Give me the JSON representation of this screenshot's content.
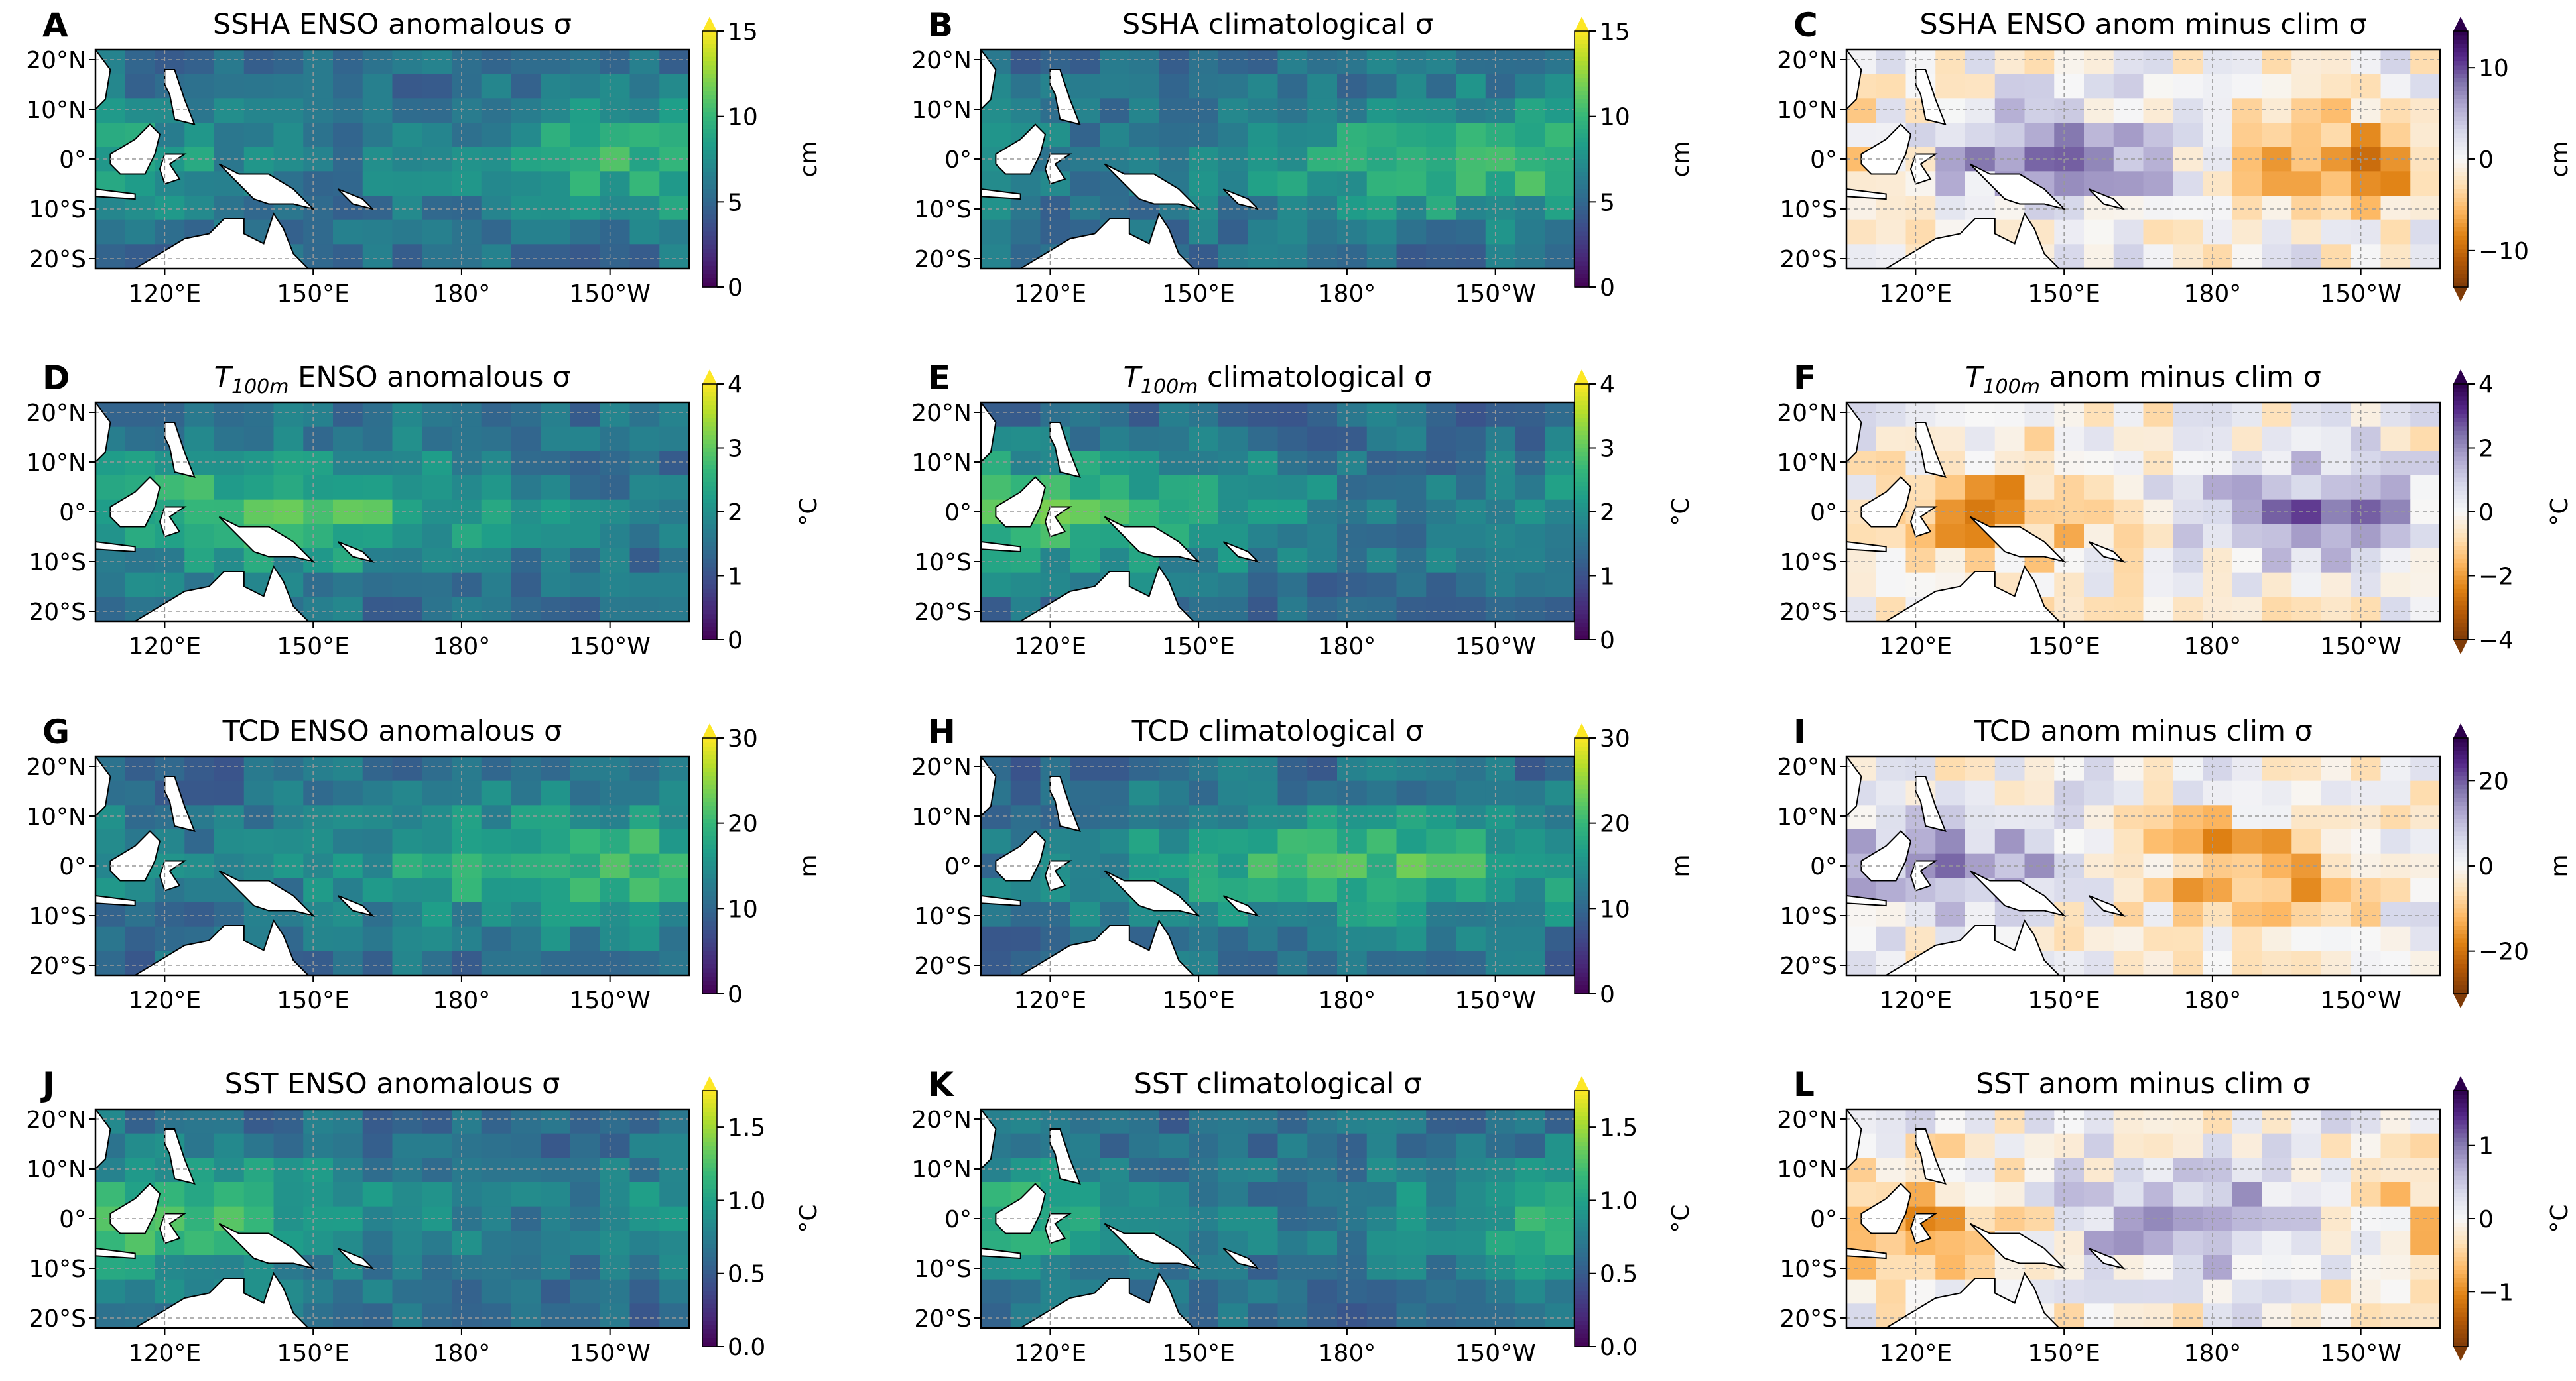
{
  "figure": {
    "x_ticks": [
      "120°E",
      "150°E",
      "180°",
      "150°W"
    ],
    "y_ticks": [
      "20°N",
      "10°N",
      "0°",
      "10°S",
      "20°S"
    ],
    "colormaps": {
      "viridis": [
        "#440154",
        "#482878",
        "#3e4a89",
        "#31688e",
        "#26828e",
        "#1f9e89",
        "#35b779",
        "#6ece58",
        "#b5de2b",
        "#fde725"
      ],
      "puor": [
        "#7f3b08",
        "#b35806",
        "#e08214",
        "#fdb863",
        "#fee0b6",
        "#f7f7f7",
        "#d8daeb",
        "#b2abd2",
        "#8073ac",
        "#542788",
        "#2d004b"
      ]
    },
    "land_color": "#ffffff",
    "grid": true
  },
  "chart_data": [
    {
      "id": "A",
      "type": "heatmap",
      "title": "SSHA ENSO anomalous σ",
      "cmap": "viridis",
      "range": [
        0,
        15
      ],
      "ticks": [
        "0",
        "5",
        "10",
        "15"
      ],
      "unit": "cm",
      "seed": 11,
      "max_tip": true
    },
    {
      "id": "B",
      "type": "heatmap",
      "title": "SSHA climatological σ",
      "cmap": "viridis",
      "range": [
        0,
        15
      ],
      "ticks": [
        "0",
        "5",
        "10",
        "15"
      ],
      "unit": "cm",
      "seed": 12,
      "max_tip": true
    },
    {
      "id": "C",
      "type": "heatmap",
      "title": "SSHA ENSO anom minus clim σ",
      "cmap": "puor",
      "range": [
        -14,
        14
      ],
      "ticks": [
        "−10",
        "0",
        "10"
      ],
      "tick_values": [
        -10,
        0,
        10
      ],
      "unit": "cm",
      "seed": 13,
      "diverging": true
    },
    {
      "id": "D",
      "type": "heatmap",
      "title_prefix": "T",
      "title_sub": "100m",
      "title_rest": " ENSO anomalous σ",
      "cmap": "viridis",
      "range": [
        0,
        4
      ],
      "ticks": [
        "0",
        "1",
        "2",
        "3",
        "4"
      ],
      "unit": "°C",
      "seed": 21,
      "max_tip": true
    },
    {
      "id": "E",
      "type": "heatmap",
      "title_prefix": "T",
      "title_sub": "100m",
      "title_rest": " climatological σ",
      "cmap": "viridis",
      "range": [
        0,
        4
      ],
      "ticks": [
        "0",
        "1",
        "2",
        "3",
        "4"
      ],
      "unit": "°C",
      "seed": 22,
      "max_tip": true
    },
    {
      "id": "F",
      "type": "heatmap",
      "title_prefix": "T",
      "title_sub": "100m",
      "title_rest": " anom minus clim σ",
      "cmap": "puor",
      "range": [
        -4,
        4
      ],
      "ticks": [
        "−4",
        "−2",
        "0",
        "2",
        "4"
      ],
      "tick_values": [
        -4,
        -2,
        0,
        2,
        4
      ],
      "unit": "°C",
      "seed": 23,
      "diverging": true
    },
    {
      "id": "G",
      "type": "heatmap",
      "title": "TCD ENSO anomalous σ",
      "cmap": "viridis",
      "range": [
        0,
        30
      ],
      "ticks": [
        "0",
        "10",
        "20",
        "30"
      ],
      "unit": "m",
      "seed": 31,
      "max_tip": true
    },
    {
      "id": "H",
      "type": "heatmap",
      "title": "TCD climatological σ",
      "cmap": "viridis",
      "range": [
        0,
        30
      ],
      "ticks": [
        "0",
        "10",
        "20",
        "30"
      ],
      "unit": "m",
      "seed": 32,
      "max_tip": true
    },
    {
      "id": "I",
      "type": "heatmap",
      "title": "TCD anom minus clim σ",
      "cmap": "puor",
      "range": [
        -30,
        30
      ],
      "ticks": [
        "−20",
        "0",
        "20"
      ],
      "tick_values": [
        -20,
        0,
        20
      ],
      "unit": "m",
      "seed": 33,
      "diverging": true
    },
    {
      "id": "J",
      "type": "heatmap",
      "title": "SST ENSO anomalous σ",
      "cmap": "viridis",
      "range": [
        0,
        1.75
      ],
      "ticks": [
        "0.0",
        "0.5",
        "1.0",
        "1.5"
      ],
      "tick_values": [
        0,
        0.5,
        1.0,
        1.5
      ],
      "unit": "°C",
      "seed": 41,
      "max_tip": true
    },
    {
      "id": "K",
      "type": "heatmap",
      "title": "SST climatological σ",
      "cmap": "viridis",
      "range": [
        0,
        1.75
      ],
      "ticks": [
        "0.0",
        "0.5",
        "1.0",
        "1.5"
      ],
      "tick_values": [
        0,
        0.5,
        1.0,
        1.5
      ],
      "unit": "°C",
      "seed": 42,
      "max_tip": true
    },
    {
      "id": "L",
      "type": "heatmap",
      "title": "SST anom minus clim σ",
      "cmap": "puor",
      "range": [
        -1.75,
        1.75
      ],
      "ticks": [
        "−1",
        "0",
        "1"
      ],
      "tick_values": [
        -1,
        0,
        1
      ],
      "unit": "°C",
      "seed": 43,
      "diverging": true
    }
  ]
}
